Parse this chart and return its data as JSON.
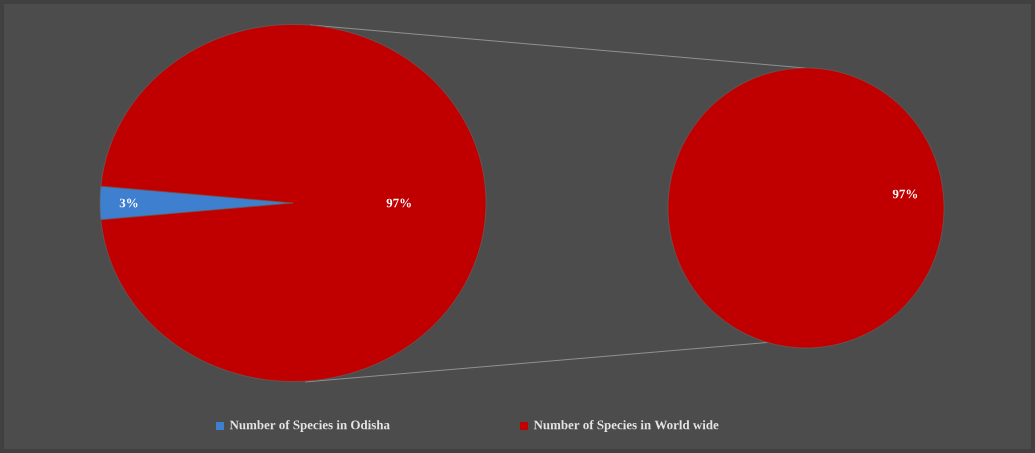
{
  "chart_data": [
    {
      "type": "pie",
      "categories": [
        "Number of Species in Odisha",
        "Number of Species in World wide"
      ],
      "values": [
        3,
        97
      ],
      "colors": [
        "#3f7fcf",
        "#c00000"
      ],
      "value_labels": [
        "3%",
        "97%"
      ],
      "legend": "bottom"
    },
    {
      "type": "pie",
      "categories": [
        null
      ],
      "values": [
        97
      ],
      "colors": [
        "#c00000"
      ],
      "value_labels": [
        "97%"
      ]
    }
  ]
}
